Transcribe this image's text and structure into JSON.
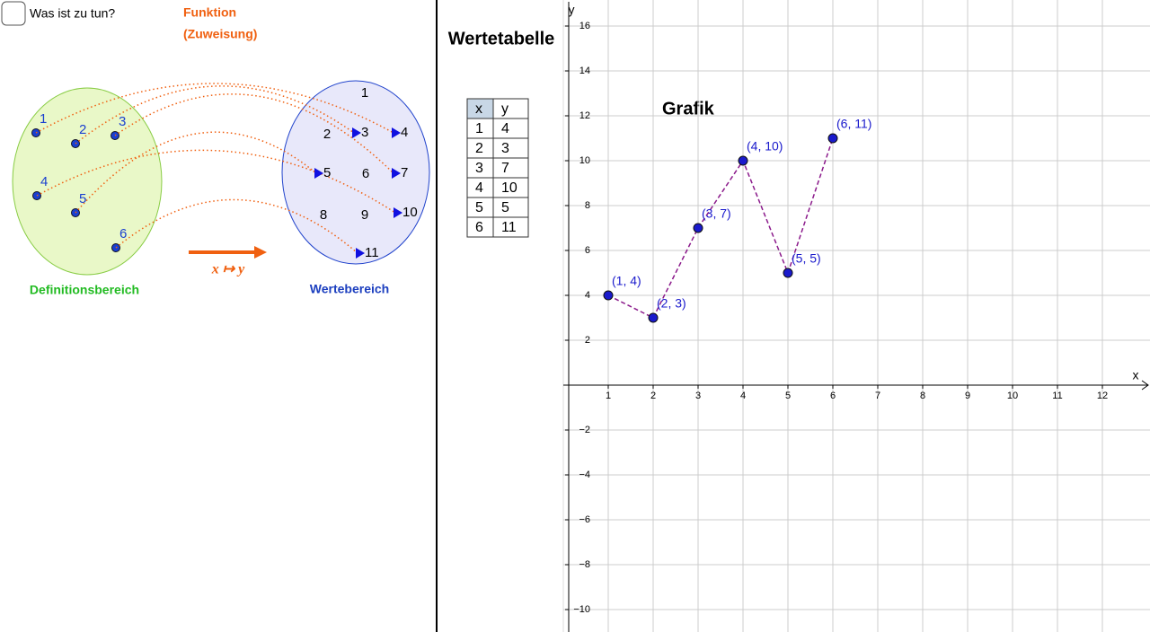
{
  "checkbox_label": "Was ist zu tun?",
  "mapping": {
    "title_line1": "Funktion",
    "title_line2": "(Zuweisung)",
    "rule": "x ↦ y",
    "domain_label": "Definitionsbereich",
    "codomain_label": "Wertebereich",
    "domain": [
      1,
      2,
      3,
      4,
      5,
      6
    ],
    "codomain": [
      1,
      2,
      3,
      4,
      5,
      6,
      7,
      8,
      9,
      10,
      11
    ]
  },
  "table": {
    "title": "Wertetabelle",
    "header": [
      "x",
      "y"
    ],
    "rows": [
      [
        1,
        4
      ],
      [
        2,
        3
      ],
      [
        3,
        7
      ],
      [
        4,
        10
      ],
      [
        5,
        5
      ],
      [
        6,
        11
      ]
    ]
  },
  "chart_data": {
    "type": "line",
    "title": "Grafik",
    "x_label": "x",
    "y_label": "y",
    "x": [
      1,
      2,
      3,
      4,
      5,
      6
    ],
    "values": [
      4,
      3,
      7,
      10,
      5,
      11
    ],
    "value_labels": [
      "(1, 4)",
      "(2, 3)",
      "(3, 7)",
      "(4, 10)",
      "(5, 5)",
      "(6, 11)"
    ],
    "color": "#1a1acc",
    "line_color": "#8b1a8b",
    "xlim": [
      0,
      13.06
    ],
    "ylim": [
      -11,
      17.16
    ],
    "xticks": [
      1,
      2,
      3,
      4,
      5,
      6,
      7,
      8,
      9,
      10,
      11,
      12
    ],
    "yticks": [
      {
        "value": -10,
        "label": "−10"
      },
      {
        "value": -8,
        "label": "−8"
      },
      {
        "value": -6,
        "label": "−6"
      },
      {
        "value": -4,
        "label": "−4"
      },
      {
        "value": -2,
        "label": "−2"
      },
      2,
      4,
      6,
      8,
      10,
      12,
      14,
      16
    ],
    "grid": true
  }
}
